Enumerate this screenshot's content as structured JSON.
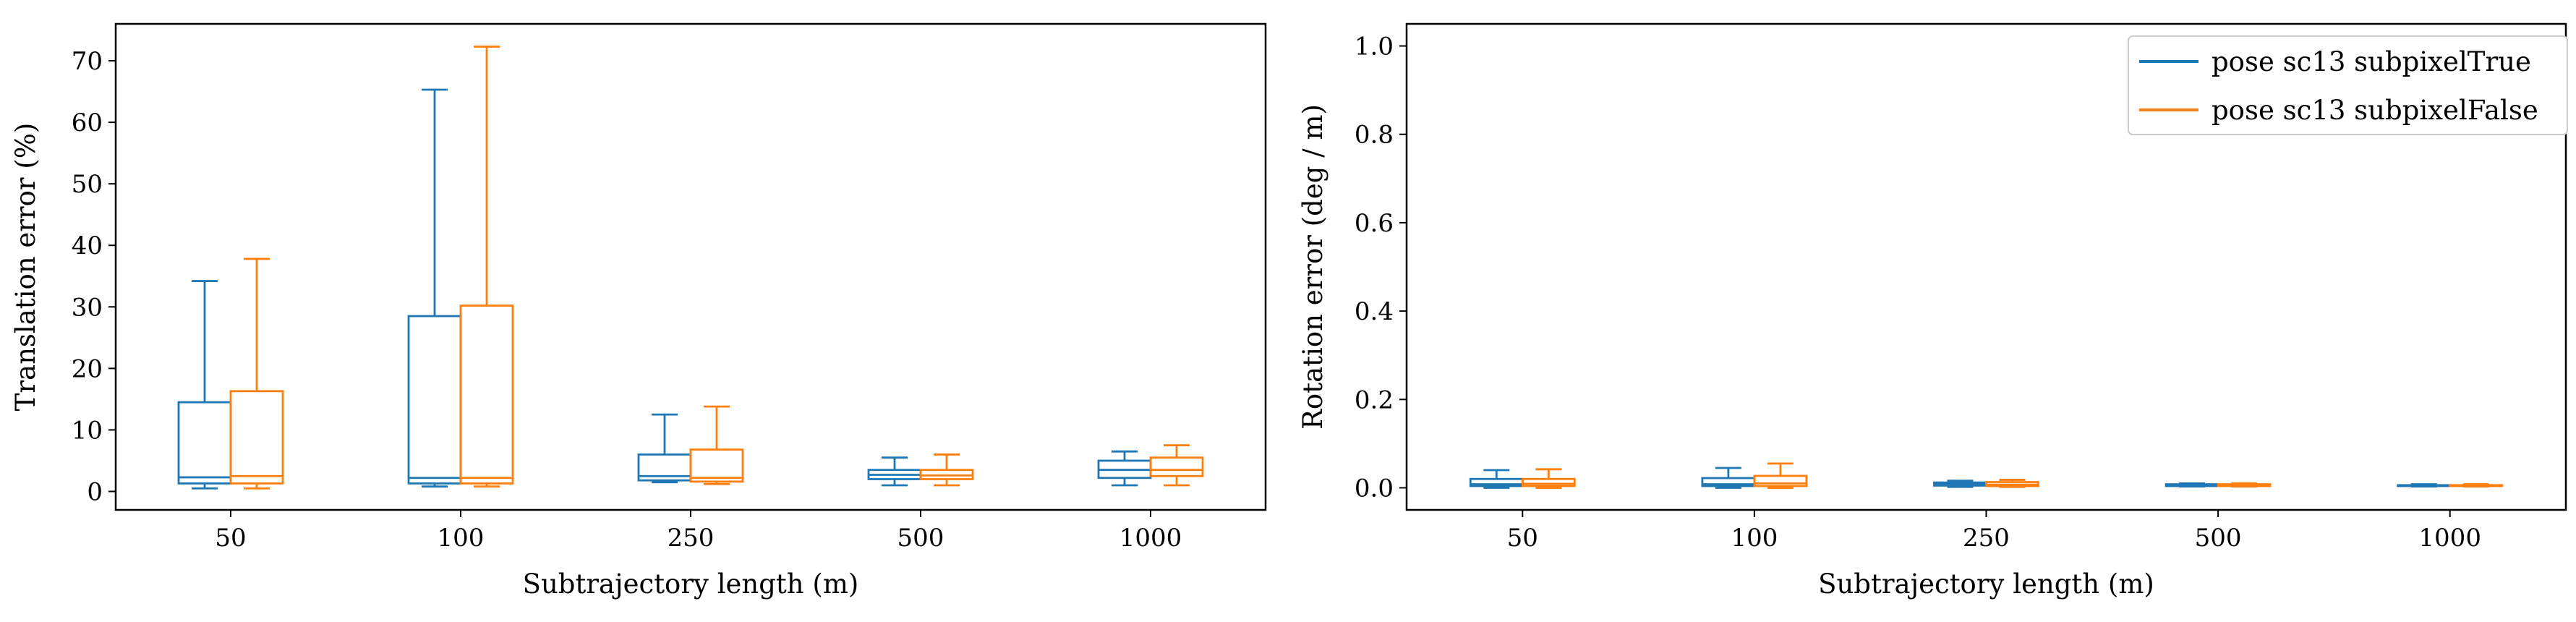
{
  "chart_data": [
    {
      "type": "box",
      "xlabel": "Subtrajectory length (m)",
      "ylabel": "Translation error (%)",
      "categories": [
        "50",
        "100",
        "250",
        "500",
        "1000"
      ],
      "ylim": [
        -3,
        76
      ],
      "yticks": [
        0,
        10,
        20,
        30,
        40,
        50,
        60,
        70
      ],
      "grid": false,
      "series": [
        {
          "name": "pose sc13 subpixelTrue",
          "color": "#1f77b4",
          "boxes": [
            {
              "whislo": 0.5,
              "q1": 1.3,
              "med": 2.3,
              "q3": 14.5,
              "whishi": 34.2
            },
            {
              "whislo": 0.8,
              "q1": 1.3,
              "med": 2.2,
              "q3": 28.5,
              "whishi": 65.3
            },
            {
              "whislo": 1.5,
              "q1": 1.8,
              "med": 2.5,
              "q3": 6.0,
              "whishi": 12.5
            },
            {
              "whislo": 1.0,
              "q1": 2.0,
              "med": 2.7,
              "q3": 3.5,
              "whishi": 5.5
            },
            {
              "whislo": 1.0,
              "q1": 2.2,
              "med": 3.5,
              "q3": 5.0,
              "whishi": 6.5
            }
          ]
        },
        {
          "name": "pose sc13 subpixelFalse",
          "color": "#ff7f0e",
          "boxes": [
            {
              "whislo": 0.5,
              "q1": 1.3,
              "med": 2.5,
              "q3": 16.3,
              "whishi": 37.8
            },
            {
              "whislo": 0.8,
              "q1": 1.3,
              "med": 2.2,
              "q3": 30.2,
              "whishi": 72.3
            },
            {
              "whislo": 1.2,
              "q1": 1.6,
              "med": 2.2,
              "q3": 6.8,
              "whishi": 13.8
            },
            {
              "whislo": 1.0,
              "q1": 2.0,
              "med": 2.6,
              "q3": 3.5,
              "whishi": 6.0
            },
            {
              "whislo": 1.0,
              "q1": 2.5,
              "med": 3.5,
              "q3": 5.5,
              "whishi": 7.5
            }
          ]
        }
      ]
    },
    {
      "type": "box",
      "xlabel": "Subtrajectory length (m)",
      "ylabel": "Rotation error (deg / m)",
      "categories": [
        "50",
        "100",
        "250",
        "500",
        "1000"
      ],
      "ylim": [
        -0.05,
        1.05
      ],
      "yticks": [
        0.0,
        0.2,
        0.4,
        0.6,
        0.8,
        1.0
      ],
      "grid": false,
      "legend": "top-right",
      "series": [
        {
          "name": "pose sc13 subpixelTrue",
          "color": "#1f77b4",
          "boxes": [
            {
              "whislo": 0.0,
              "q1": 0.004,
              "med": 0.008,
              "q3": 0.02,
              "whishi": 0.04
            },
            {
              "whislo": 0.0,
              "q1": 0.004,
              "med": 0.008,
              "q3": 0.022,
              "whishi": 0.045
            },
            {
              "whislo": 0.002,
              "q1": 0.005,
              "med": 0.008,
              "q3": 0.012,
              "whishi": 0.016
            },
            {
              "whislo": 0.003,
              "q1": 0.004,
              "med": 0.006,
              "q3": 0.008,
              "whishi": 0.01
            },
            {
              "whislo": 0.003,
              "q1": 0.004,
              "med": 0.005,
              "q3": 0.006,
              "whishi": 0.008
            }
          ]
        },
        {
          "name": "pose sc13 subpixelFalse",
          "color": "#ff7f0e",
          "boxes": [
            {
              "whislo": 0.0,
              "q1": 0.004,
              "med": 0.009,
              "q3": 0.02,
              "whishi": 0.042
            },
            {
              "whislo": 0.0,
              "q1": 0.004,
              "med": 0.01,
              "q3": 0.027,
              "whishi": 0.055
            },
            {
              "whislo": 0.002,
              "q1": 0.004,
              "med": 0.007,
              "q3": 0.013,
              "whishi": 0.018
            },
            {
              "whislo": 0.003,
              "q1": 0.004,
              "med": 0.006,
              "q3": 0.008,
              "whishi": 0.01
            },
            {
              "whislo": 0.003,
              "q1": 0.004,
              "med": 0.005,
              "q3": 0.006,
              "whishi": 0.008
            }
          ]
        }
      ]
    }
  ]
}
